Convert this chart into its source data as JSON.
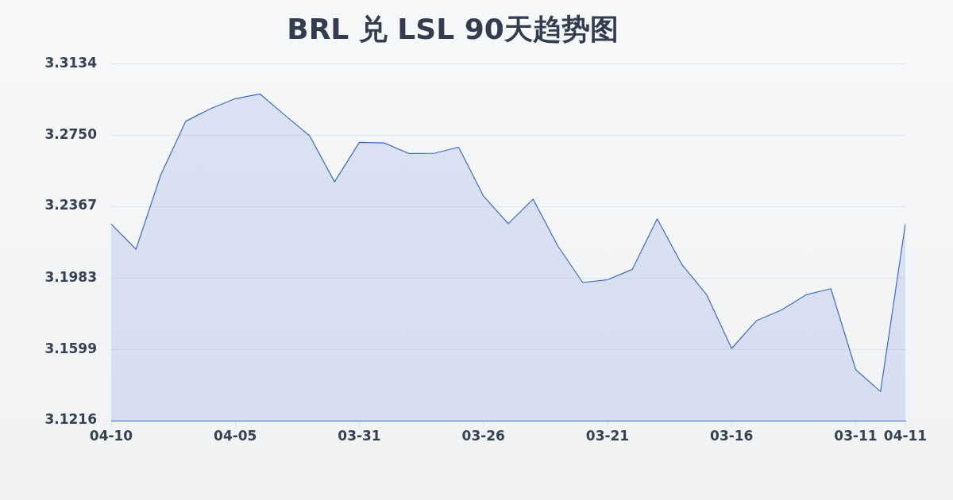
{
  "chart_data": {
    "type": "area",
    "title": "BRL 兑 LSL 90天趋势图",
    "categories": [
      "04-10",
      null,
      null,
      null,
      null,
      "04-05",
      null,
      null,
      null,
      null,
      "03-31",
      null,
      null,
      null,
      null,
      "03-26",
      null,
      null,
      null,
      null,
      "03-21",
      null,
      null,
      null,
      null,
      "03-16",
      null,
      null,
      null,
      null,
      "03-11",
      null,
      "04-11"
    ],
    "series": [
      {
        "color": "#3b6bd0",
        "values": [
          3.2272,
          3.2137,
          3.2537,
          3.2824,
          3.2892,
          3.2946,
          3.2971,
          3.2857,
          3.2746,
          3.2499,
          3.2711,
          3.2708,
          3.2651,
          3.2652,
          3.2685,
          3.2423,
          3.2274,
          3.2406,
          3.2154,
          3.1958,
          3.1973,
          3.2029,
          3.23,
          3.2054,
          3.1891,
          3.1604,
          3.1753,
          3.181,
          3.1892,
          3.1925,
          3.149,
          3.1372,
          3.2272
        ]
      }
    ],
    "ylim": [
      3.1216,
      3.3134
    ],
    "yticks": [
      3.1216,
      3.1599,
      3.1983,
      3.2367,
      {
        "value": 3.275,
        "label": "3.2750"
      },
      3.3134
    ],
    "grid": "y",
    "marker": "none"
  }
}
